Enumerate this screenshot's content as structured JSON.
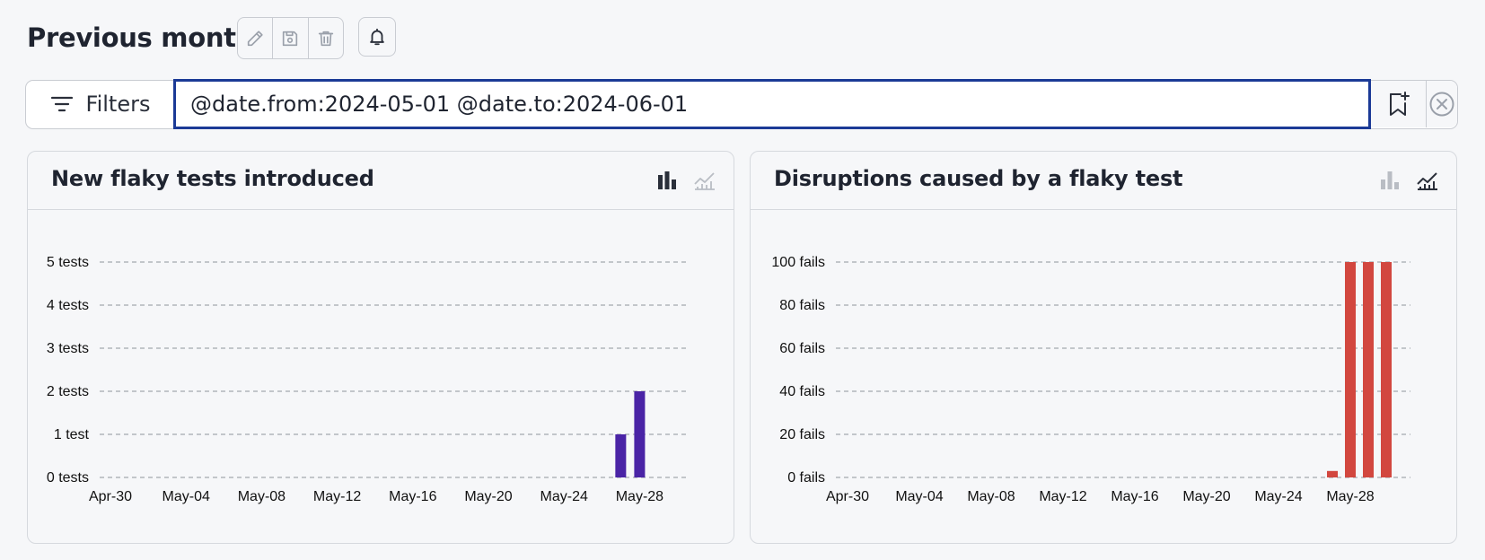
{
  "header": {
    "title": "Previous month",
    "buttons": {
      "edit": "pencil-icon",
      "save": "floppy-disk-icon",
      "delete": "trash-icon",
      "alerts": "bell-icon"
    }
  },
  "filter": {
    "label": "Filters",
    "query": "@date.from:2024-05-01 @date.to:2024-06-01",
    "bookmark_icon": "bookmark-plus-icon",
    "clear_icon": "circle-x-icon"
  },
  "charts": [
    {
      "title": "New flaky tests introduced",
      "active_view": "bar",
      "chart_data": {
        "type": "bar",
        "x_ticks": [
          "Apr-30",
          "May-04",
          "May-08",
          "May-12",
          "May-16",
          "May-20",
          "May-24",
          "May-28"
        ],
        "y_ticks": [
          "0 tests",
          "1 test",
          "2 tests",
          "3 tests",
          "4 tests",
          "5 tests"
        ],
        "ylim": [
          0,
          5
        ],
        "x_start": "2024-04-30",
        "x_end": "2024-05-31",
        "points": [
          {
            "x": "2024-05-27",
            "y": 1
          },
          {
            "x": "2024-05-28",
            "y": 2
          }
        ],
        "color": "#4a24a6",
        "grid": true
      }
    },
    {
      "title": "Disruptions caused by a flaky test",
      "active_view": "line",
      "chart_data": {
        "type": "bar",
        "x_ticks": [
          "Apr-30",
          "May-04",
          "May-08",
          "May-12",
          "May-16",
          "May-20",
          "May-24",
          "May-28"
        ],
        "y_ticks": [
          "0 fails",
          "20 fails",
          "40 fails",
          "60 fails",
          "80 fails",
          "100 fails"
        ],
        "ylim": [
          0,
          100
        ],
        "x_start": "2024-04-30",
        "x_end": "2024-05-31",
        "points": [
          {
            "x": "2024-05-27",
            "y": 3
          },
          {
            "x": "2024-05-28",
            "y": 100
          },
          {
            "x": "2024-05-29",
            "y": 100
          },
          {
            "x": "2024-05-30",
            "y": 100
          }
        ],
        "color": "#d2473f",
        "grid": true
      }
    }
  ]
}
